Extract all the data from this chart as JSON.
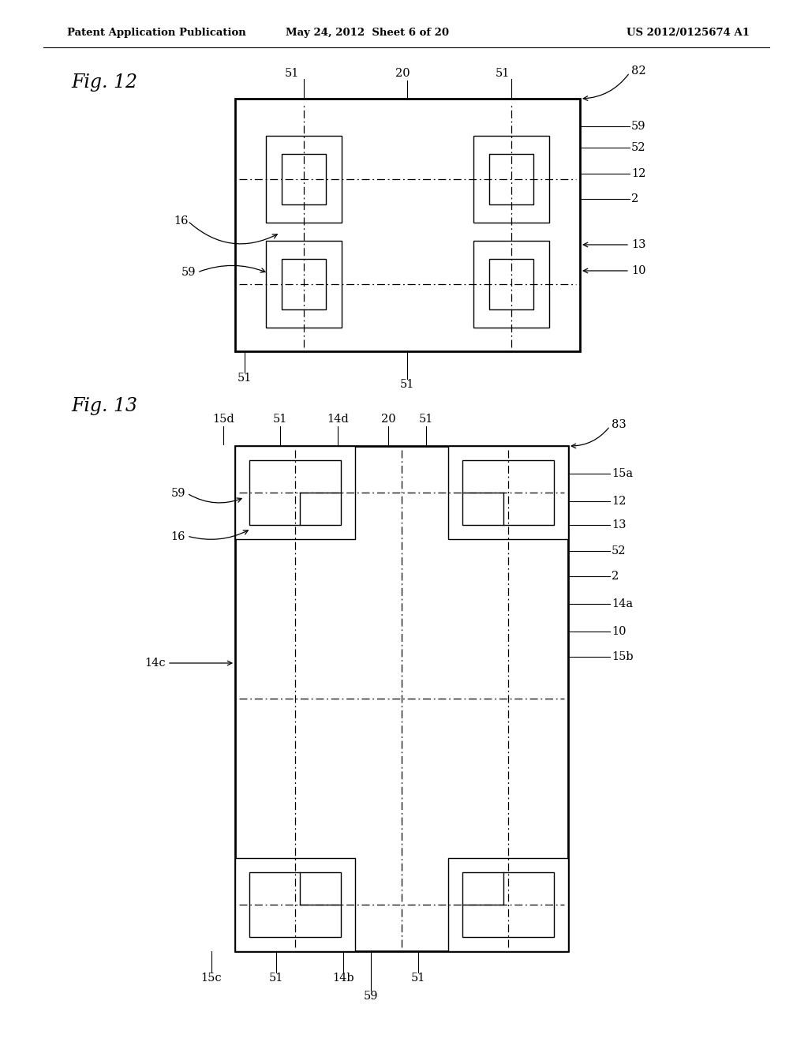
{
  "header_left": "Patent Application Publication",
  "header_center": "May 24, 2012  Sheet 6 of 20",
  "header_right": "US 2012/0125674 A1",
  "fig12_title": "Fig. 12",
  "fig13_title": "Fig. 13",
  "bg_color": "#ffffff",
  "line_color": "#000000"
}
